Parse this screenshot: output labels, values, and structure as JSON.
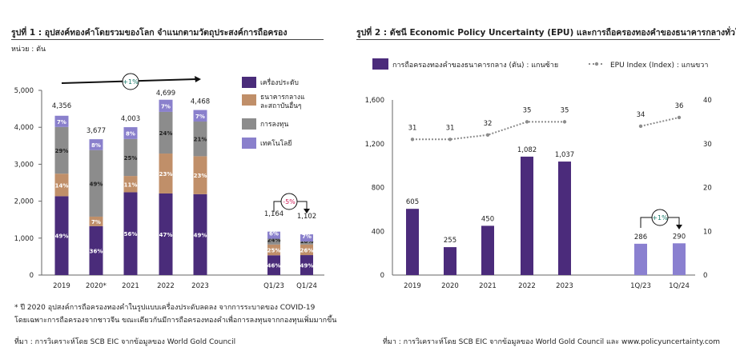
{
  "chart1": {
    "title": "รูปที่ 1 : อุปสงค์ทองคำโดยรวมของโลก จำแนกตามวัตถุประสงค์การถือครอง",
    "unit": "หน่วย : ตัน",
    "footnote1": "* ปี 2020 อุปสงค์การถือครองทองคำในรูปแบบเครื่องประดับลดลง จากการระบาดของ COVID-19",
    "footnote2": "โดยเฉพาะการถือครองจากชาวจีน ขณะเดียวกันมีการถือครองทองคำเพื่อการลงทุนจากกองทุนเพิ่มมากขึ้น",
    "source": "ที่มา : การวิเคราะห์โดย SCB EIC จากข้อมูลของ World Gold Council"
  },
  "chart2": {
    "title": "รูปที่ 2 : ดัชนี Economic Policy Uncertainty (EPU) และการถือครองทองคำของธนาคารกลางทั่วโลก",
    "source": "ที่มา : การวิเคราะห์โดย SCB EIC จากข้อมูลของ World Gold Council และ www.policyuncertainty.com"
  },
  "chart_data": [
    {
      "type": "bar",
      "stacked": true,
      "categories": [
        "2019",
        "2020*",
        "2021",
        "2022",
        "2023",
        "Q1/23",
        "Q1/24"
      ],
      "totals": [
        4356,
        3677,
        4003,
        4699,
        4468,
        1164,
        1102
      ],
      "series": [
        {
          "name": "เครื่องประดับ",
          "color": "#4a2c7a",
          "percent": [
            49,
            36,
            56,
            47,
            49,
            46,
            49
          ]
        },
        {
          "name": "ธนาคารกลางและสถาบันอื่นๆ",
          "color": "#c08f69",
          "percent": [
            14,
            7,
            11,
            23,
            23,
            25,
            26
          ]
        },
        {
          "name": "การลงทุน",
          "color": "#8c8c8c",
          "percent": [
            29,
            49,
            25,
            24,
            21,
            24,
            18
          ]
        },
        {
          "name": "เทคโนโลยี",
          "color": "#8a80cc",
          "percent": [
            7,
            8,
            8,
            7,
            7,
            6,
            7
          ]
        }
      ],
      "yticks": [
        "0",
        "1,000",
        "2,000",
        "3,000",
        "4,000",
        "5,000"
      ],
      "ylim": [
        0,
        5000
      ],
      "annotations": [
        "+1%",
        "-5%"
      ],
      "legend": "right"
    },
    {
      "type": "bar+line",
      "categories": [
        "2019",
        "2020",
        "2021",
        "2022",
        "2023",
        "1Q/23",
        "1Q/24"
      ],
      "series": [
        {
          "name": "การถือครองทองคำของธนาคารกลาง (ตัน) : แกนซ้าย",
          "type": "bar",
          "axis": "left",
          "values": [
            605,
            255,
            450,
            1082,
            1037,
            286,
            290
          ],
          "colors": [
            "#4b2b7b",
            "#8a80d0"
          ]
        },
        {
          "name": "EPU Index (Index) : แกนขวา",
          "type": "line",
          "axis": "right",
          "values": [
            31,
            31,
            32,
            35,
            35,
            34,
            36
          ],
          "color": "#8c8c8c"
        }
      ],
      "yticks_left": [
        "0",
        "400",
        "800",
        "1,200",
        "1,600"
      ],
      "ylim_left": [
        0,
        1600
      ],
      "yticks_right": [
        "0",
        "10",
        "20",
        "30",
        "40"
      ],
      "ylim_right": [
        0,
        40
      ],
      "annotations": [
        "+1%"
      ],
      "legend": "top"
    }
  ]
}
